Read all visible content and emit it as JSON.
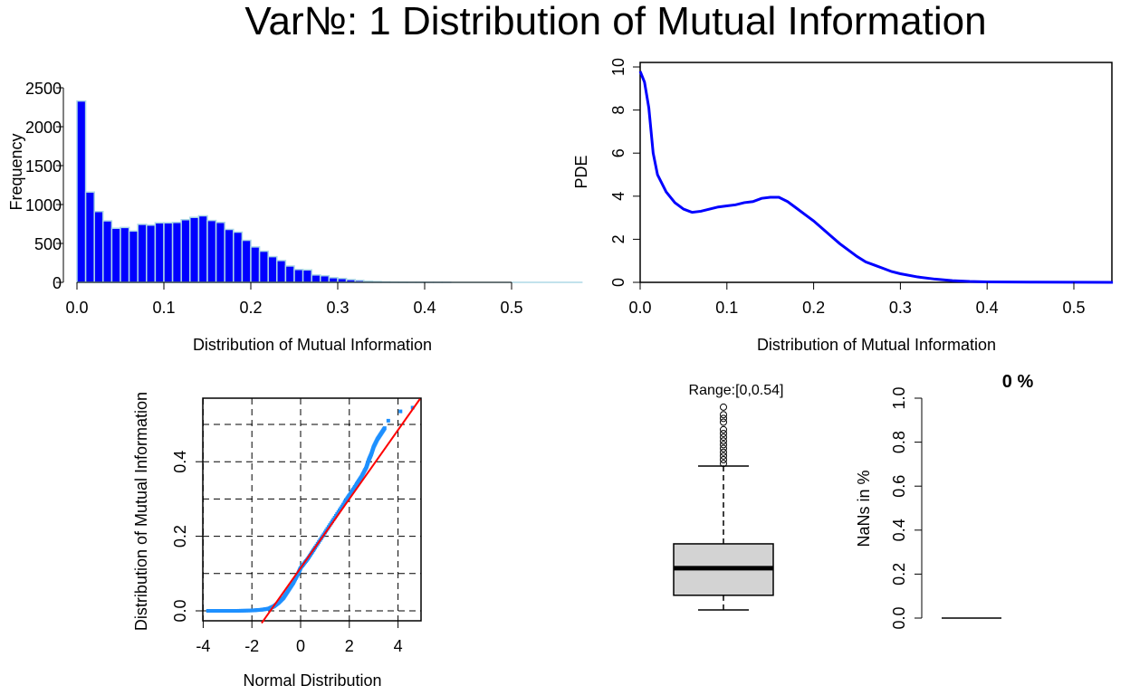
{
  "title": "Var№: 1 Distribution of Mutual Information",
  "chart_data": [
    {
      "type": "bar",
      "name": "histogram",
      "xlabel": "Distribution of Mutual Information",
      "ylabel": "Frequency",
      "xlim": [
        0,
        0.54
      ],
      "ylim": [
        0,
        2500
      ],
      "xticks": [
        "0.0",
        "0.1",
        "0.2",
        "0.3",
        "0.4",
        "0.5"
      ],
      "yticks": [
        "0",
        "500",
        "1000",
        "1500",
        "2000",
        "2500"
      ],
      "bin_width": 0.01,
      "bin_starts": [
        0,
        0.01,
        0.02,
        0.03,
        0.04,
        0.05,
        0.06,
        0.07,
        0.08,
        0.09,
        0.1,
        0.11,
        0.12,
        0.13,
        0.14,
        0.15,
        0.16,
        0.17,
        0.18,
        0.19,
        0.2,
        0.21,
        0.22,
        0.23,
        0.24,
        0.25,
        0.26,
        0.27,
        0.28,
        0.29,
        0.3,
        0.31,
        0.32,
        0.33,
        0.34,
        0.35,
        0.36,
        0.37,
        0.38,
        0.39,
        0.4,
        0.41,
        0.42
      ],
      "values": [
        2330,
        1160,
        910,
        790,
        695,
        705,
        660,
        745,
        735,
        765,
        765,
        770,
        805,
        835,
        855,
        795,
        770,
        680,
        645,
        540,
        455,
        400,
        330,
        280,
        210,
        165,
        160,
        95,
        85,
        60,
        50,
        35,
        25,
        15,
        10,
        6,
        4,
        3,
        2,
        2,
        1,
        1,
        1
      ],
      "colors": {
        "fill": "#0000ff",
        "border": "#add8e6"
      }
    },
    {
      "type": "line",
      "name": "pde",
      "xlabel": "Distribution of Mutual Information",
      "ylabel": "PDE",
      "xlim": [
        0,
        0.545
      ],
      "ylim": [
        0,
        10
      ],
      "xticks": [
        "0.0",
        "0.1",
        "0.2",
        "0.3",
        "0.4",
        "0.5"
      ],
      "yticks": [
        "0",
        "2",
        "4",
        "6",
        "8",
        "10"
      ],
      "x": [
        0,
        0.005,
        0.01,
        0.015,
        0.02,
        0.03,
        0.04,
        0.05,
        0.06,
        0.07,
        0.08,
        0.09,
        0.1,
        0.11,
        0.12,
        0.13,
        0.14,
        0.15,
        0.16,
        0.17,
        0.18,
        0.19,
        0.2,
        0.21,
        0.22,
        0.23,
        0.24,
        0.25,
        0.26,
        0.27,
        0.28,
        0.29,
        0.3,
        0.32,
        0.34,
        0.36,
        0.38,
        0.4,
        0.45,
        0.5,
        0.545
      ],
      "y": [
        9.8,
        9.3,
        8.1,
        6.0,
        5.0,
        4.2,
        3.7,
        3.4,
        3.25,
        3.3,
        3.4,
        3.5,
        3.55,
        3.6,
        3.7,
        3.75,
        3.9,
        3.95,
        3.95,
        3.75,
        3.45,
        3.15,
        2.85,
        2.5,
        2.15,
        1.8,
        1.5,
        1.2,
        0.95,
        0.8,
        0.65,
        0.5,
        0.4,
        0.25,
        0.15,
        0.08,
        0.04,
        0.02,
        0.01,
        0.005,
        0
      ],
      "color": "#0000ff"
    },
    {
      "type": "scatter",
      "name": "qqplot",
      "xlabel": "Normal Distribution",
      "ylabel": "Distribution of Mutual Information",
      "xlim": [
        -4,
        5
      ],
      "ylim": [
        -0.02,
        0.56
      ],
      "xticks": [
        "-4",
        "-2",
        "0",
        "2",
        "4"
      ],
      "yticks": [
        "0.0",
        "0.2",
        "0.4"
      ],
      "grid": true,
      "x": [
        -3.8,
        -3.2,
        -2.6,
        -2.0,
        -1.6,
        -1.3,
        -1.1,
        -0.9,
        -0.7,
        -0.5,
        -0.3,
        -0.1,
        0,
        0.3,
        0.6,
        1.0,
        1.4,
        1.8,
        2.0,
        2.3,
        2.5,
        2.7,
        2.8,
        2.9,
        3.0,
        3.15,
        3.3,
        3.45,
        3.6,
        4.1,
        4.6
      ],
      "y": [
        0,
        0,
        0,
        0.001,
        0.003,
        0.006,
        0.012,
        0.022,
        0.035,
        0.055,
        0.075,
        0.1,
        0.115,
        0.14,
        0.17,
        0.21,
        0.25,
        0.29,
        0.31,
        0.34,
        0.36,
        0.385,
        0.405,
        0.42,
        0.44,
        0.46,
        0.475,
        0.49,
        0.51,
        0.535,
        0.545
      ],
      "reference_line": {
        "intercept": 0.115,
        "slope": 0.0925,
        "color": "#ff0000"
      },
      "point_color": "#1e90ff"
    },
    {
      "type": "box",
      "name": "boxplot",
      "title": "Range:[0,0.54]",
      "min": 0,
      "q1": 0.039,
      "median": 0.111,
      "q3": 0.176,
      "upper_whisker": 0.383,
      "outliers": [
        0.39,
        0.4,
        0.41,
        0.42,
        0.43,
        0.44,
        0.45,
        0.46,
        0.47,
        0.48,
        0.5,
        0.51,
        0.52,
        0.54
      ],
      "fill": "#d3d3d3"
    },
    {
      "type": "bar",
      "name": "nans",
      "title": "0 %",
      "ylabel": "NaNs in %",
      "ylim": [
        0,
        1
      ],
      "yticks": [
        "0.0",
        "0.2",
        "0.4",
        "0.6",
        "0.8",
        "1.0"
      ],
      "values": [
        0
      ]
    }
  ]
}
